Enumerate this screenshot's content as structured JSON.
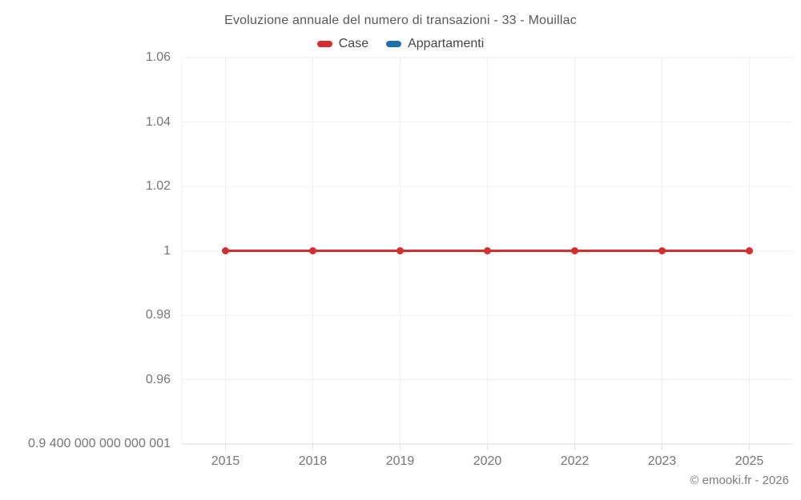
{
  "header": {
    "title": "Evoluzione annuale del numero di transazioni - 33 - Mouillac"
  },
  "legend": {
    "items": [
      {
        "label": "Case",
        "color": "#d32f2f"
      },
      {
        "label": "Appartamenti",
        "color": "#1f6fa8"
      }
    ]
  },
  "footer": {
    "credit": "© emooki.fr - 2026"
  },
  "colors": {
    "grid": "#f0f0f0",
    "axis_line": "#d9d9d9",
    "tick_mark": "#e2e2e2",
    "title_text": "#57585a",
    "tick_text": "#757575",
    "series_case": "#d32f2f",
    "series_appartamenti": "#1f6fa8"
  },
  "chart_data": {
    "type": "line",
    "title": "Evoluzione annuale del numero di transazioni - 33 - Mouillac",
    "xlabel": "",
    "ylabel": "",
    "grid": true,
    "legend_position": "top",
    "categories": [
      "2015",
      "2018",
      "2019",
      "2020",
      "2022",
      "2023",
      "2025"
    ],
    "series": [
      {
        "name": "Case",
        "color": "#d32f2f",
        "marker": "circle",
        "values": [
          1,
          1,
          1,
          1,
          1,
          1,
          1
        ]
      },
      {
        "name": "Appartamenti",
        "color": "#1f6fa8",
        "marker": "circle",
        "values": []
      }
    ],
    "ylim": [
      0.94,
      1.06
    ],
    "ytick_values": [
      1.06,
      1.04,
      1.02,
      1,
      0.98,
      0.96,
      0.94
    ],
    "ytick_labels": [
      "1.06",
      "1.04",
      "1.02",
      "1",
      "0.98",
      "0.96",
      "0.9 400 000 000 000 001"
    ]
  }
}
